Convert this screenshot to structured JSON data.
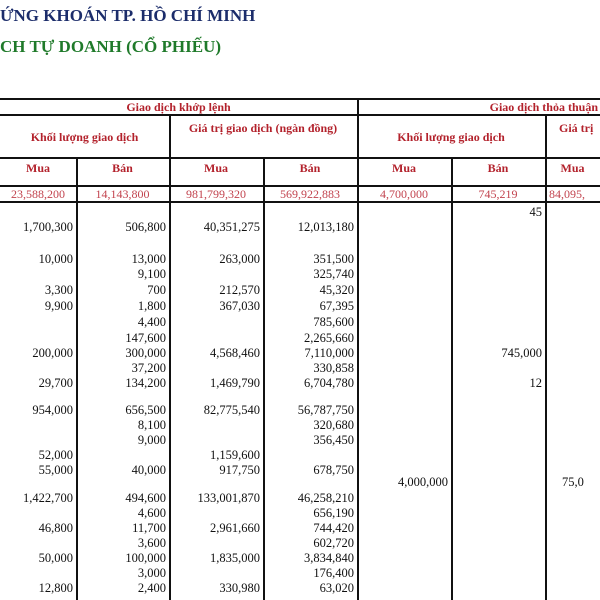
{
  "title": "ỨNG KHOÁN TP. HỒ CHÍ MINH",
  "subtitle": "CH TỰ DOANH (CỔ PHIẾU)",
  "colors": {
    "title": "#1c2d6b",
    "subtitle": "#1f7a2a",
    "header": "#b3222c",
    "totals": "#c2434e"
  },
  "table": {
    "group_headers": [
      "Giao dịch khớp lệnh",
      "Giao dịch thỏa thuận"
    ],
    "sub_headers": [
      "Khối lượng giao dịch",
      "Giá trị giao dịch (ngàn đồng)",
      "Khối lượng giao dịch",
      "Giá trị"
    ],
    "column_headers": [
      "Mua",
      "Bán",
      "Mua",
      "Bán",
      "Mua",
      "Bán",
      "Mua"
    ],
    "totals": [
      "23,588,200",
      "14,143,800",
      "981,799,320",
      "569,922,883",
      "4,700,000",
      "745,219",
      "84,095,"
    ],
    "rows": [
      [
        "",
        "",
        "",
        "",
        "",
        "45",
        ""
      ],
      [
        "1,700,300",
        "506,800",
        "40,351,275",
        "12,013,180",
        "",
        "",
        ""
      ],
      [
        "10,000",
        "13,000",
        "263,000",
        "351,500",
        "",
        "",
        ""
      ],
      [
        "",
        "9,100",
        "",
        "325,740",
        "",
        "",
        ""
      ],
      [
        "3,300",
        "700",
        "212,570",
        "45,320",
        "",
        "",
        ""
      ],
      [
        "9,900",
        "1,800",
        "367,030",
        "67,395",
        "",
        "",
        ""
      ],
      [
        "",
        "4,400",
        "",
        "785,600",
        "",
        "",
        ""
      ],
      [
        "",
        "147,600",
        "",
        "2,265,660",
        "",
        "",
        ""
      ],
      [
        "200,000",
        "300,000",
        "4,568,460",
        "7,110,000",
        "",
        "745,000",
        ""
      ],
      [
        "",
        "37,200",
        "",
        "330,858",
        "",
        "",
        ""
      ],
      [
        "29,700",
        "134,200",
        "1,469,790",
        "6,704,780",
        "",
        "12",
        ""
      ],
      [
        "954,000",
        "656,500",
        "82,775,540",
        "56,787,750",
        "",
        "",
        ""
      ],
      [
        "",
        "8,100",
        "",
        "320,680",
        "",
        "",
        ""
      ],
      [
        "",
        "9,000",
        "",
        "356,450",
        "",
        "",
        ""
      ],
      [
        "52,000",
        "",
        "1,159,600",
        "",
        "",
        "",
        ""
      ],
      [
        "55,000",
        "40,000",
        "917,750",
        "678,750",
        "",
        "",
        ""
      ],
      [
        "",
        "",
        "",
        "",
        "4,000,000",
        "",
        "75,0"
      ],
      [
        "1,422,700",
        "494,600",
        "133,001,870",
        "46,258,210",
        "",
        "",
        ""
      ],
      [
        "",
        "4,600",
        "",
        "656,190",
        "",
        "",
        ""
      ],
      [
        "46,800",
        "11,700",
        "2,961,660",
        "744,420",
        "",
        "",
        ""
      ],
      [
        "",
        "3,600",
        "",
        "602,720",
        "",
        "",
        ""
      ],
      [
        "50,000",
        "100,000",
        "1,835,000",
        "3,834,840",
        "",
        "",
        ""
      ],
      [
        "",
        "3,000",
        "",
        "176,400",
        "",
        "",
        ""
      ],
      [
        "12,800",
        "2,400",
        "330,980",
        "63,020",
        "",
        "",
        ""
      ]
    ]
  }
}
